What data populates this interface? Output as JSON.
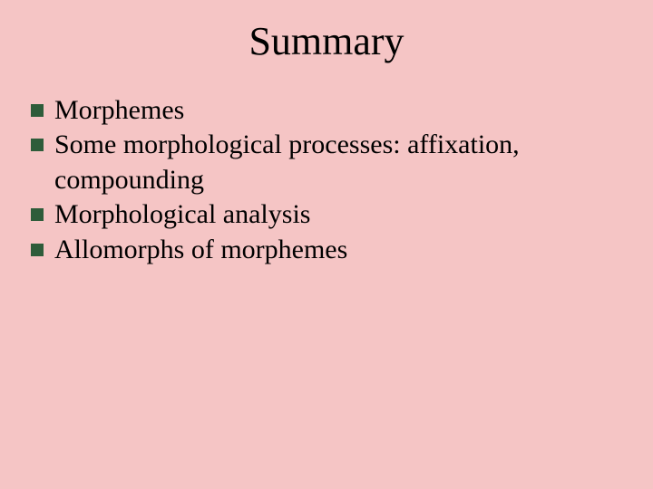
{
  "slide": {
    "background_color": "#f5c5c5",
    "title": "Summary",
    "title_fontsize": 44,
    "title_color": "#000000",
    "bullet_marker_color": "#2e5c3a",
    "bullet_marker_size": 14,
    "body_fontsize": 30,
    "body_color": "#000000",
    "font_family": "Times New Roman",
    "bullets": [
      {
        "text": "Morphemes"
      },
      {
        "text": "Some morphological processes:  affixation, compounding"
      },
      {
        "text": "Morphological analysis"
      },
      {
        "text": "Allomorphs of morphemes"
      }
    ]
  }
}
